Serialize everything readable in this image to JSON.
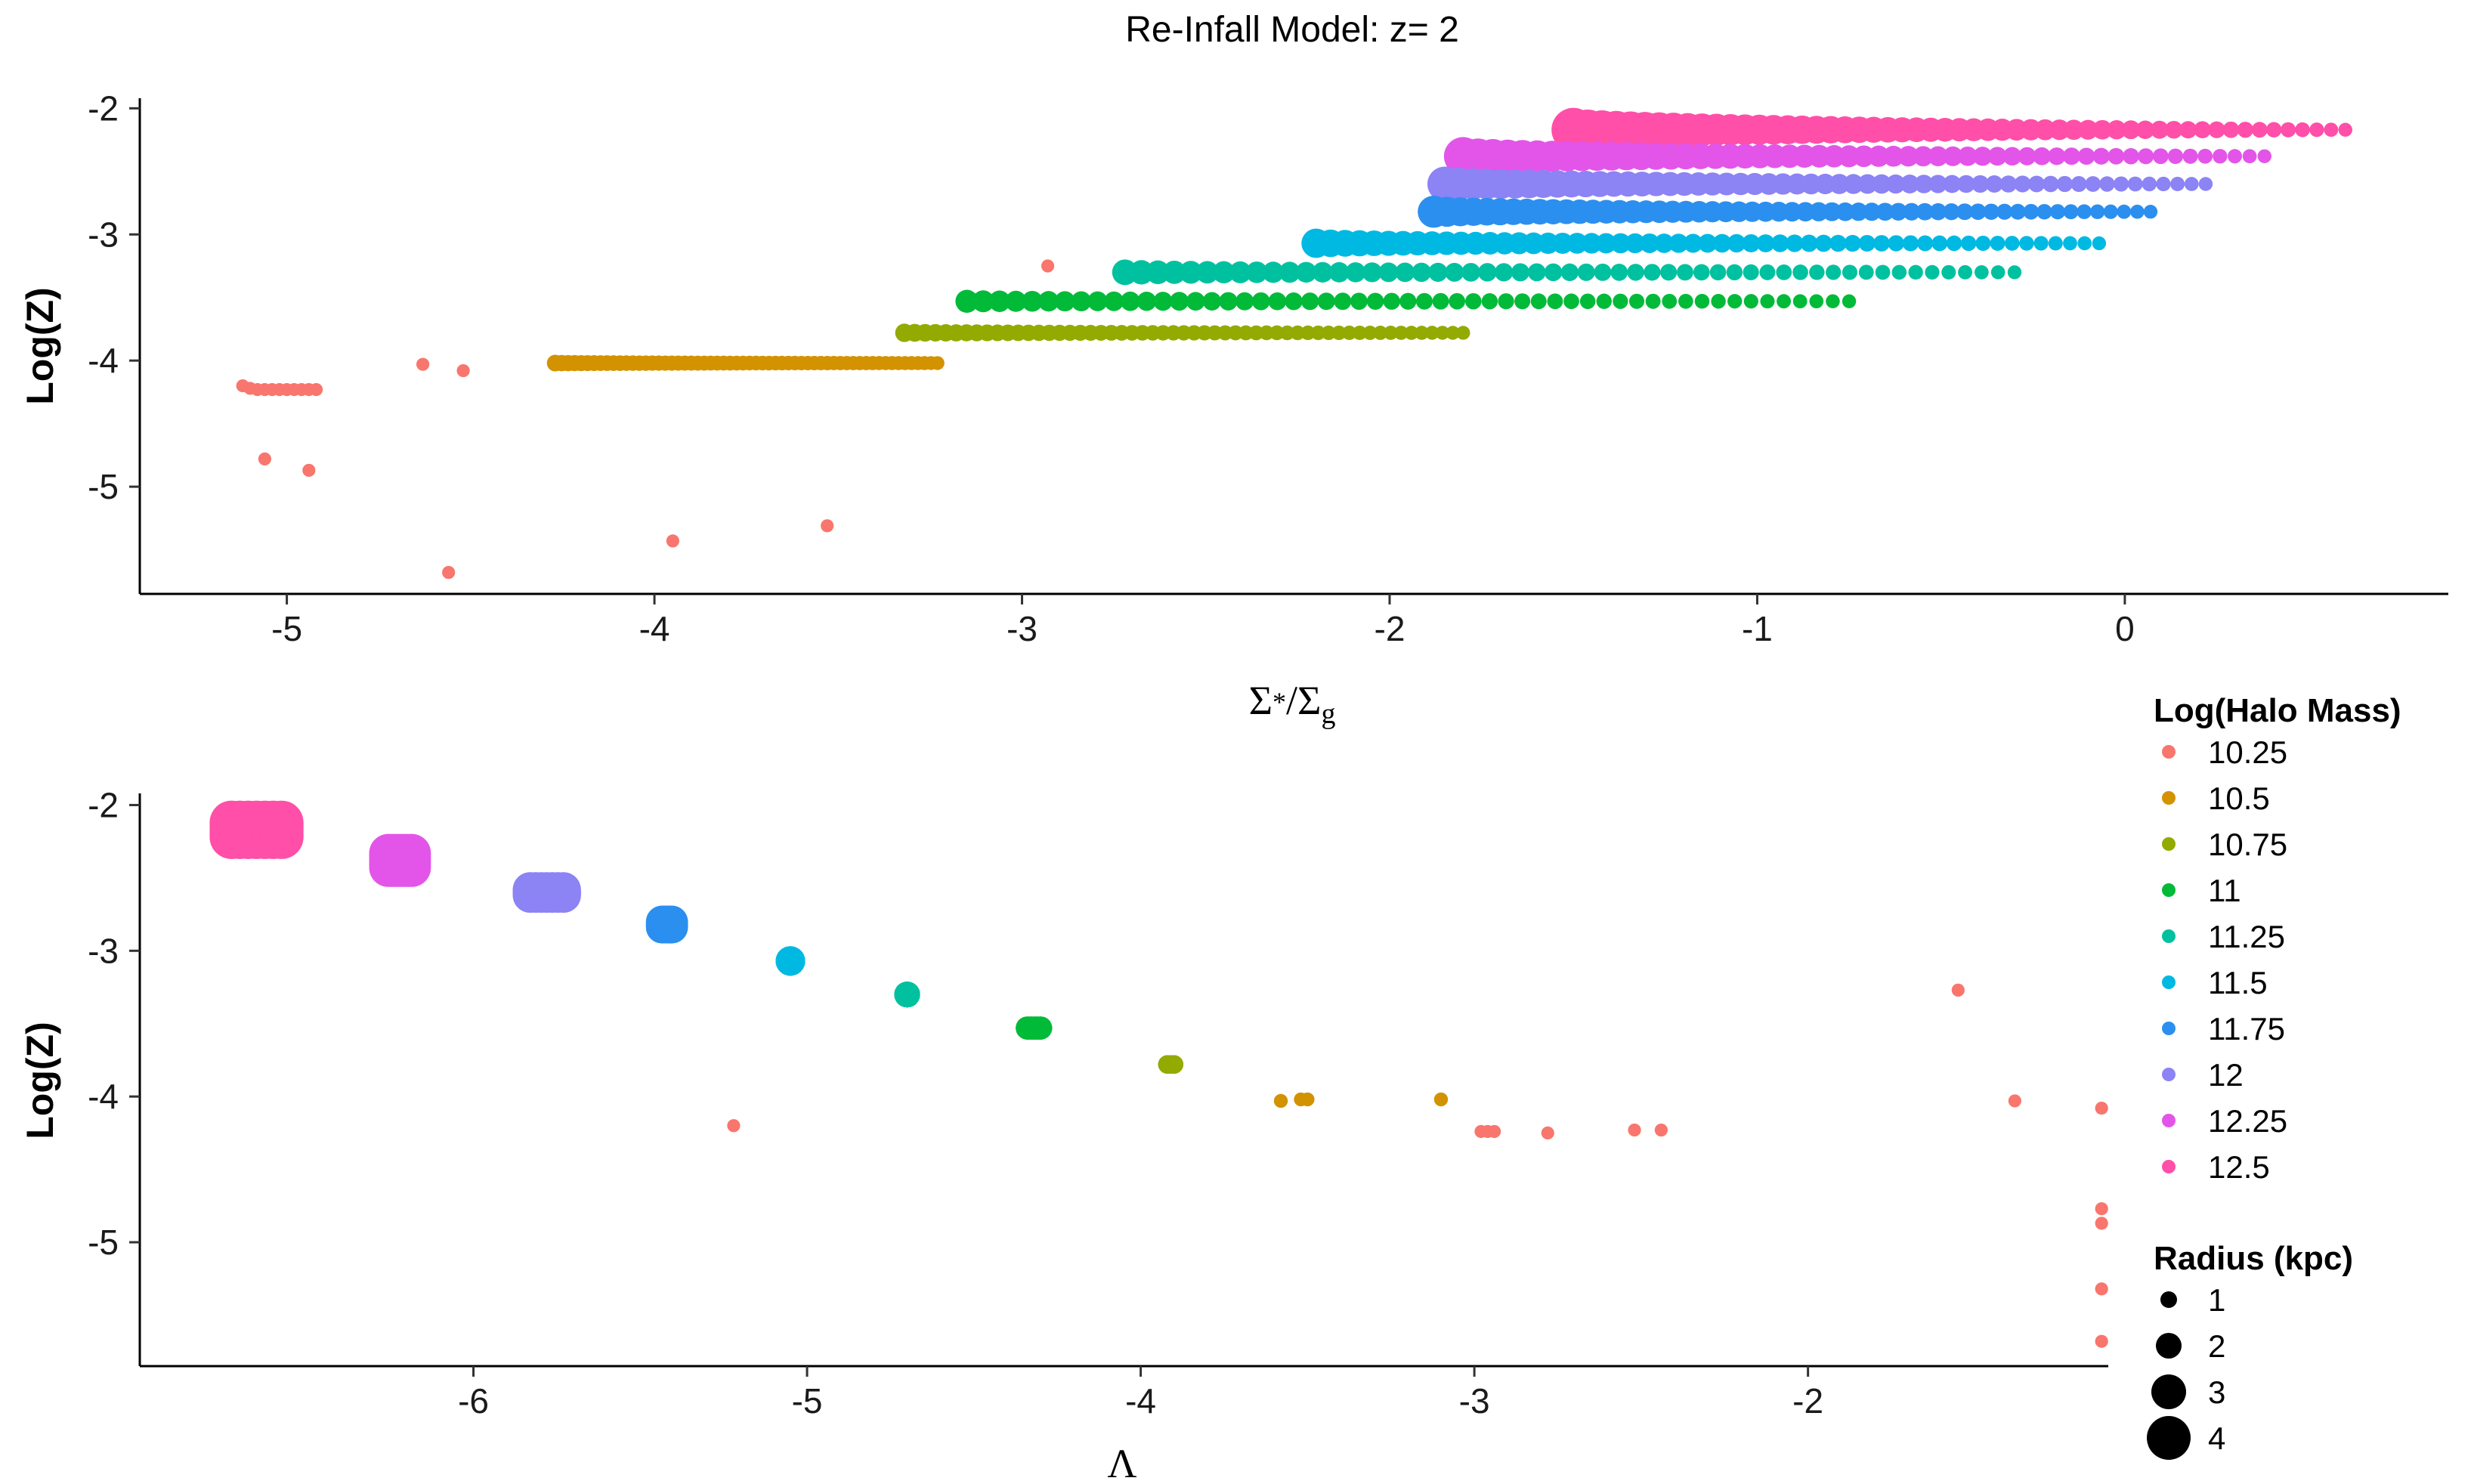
{
  "title": "Re-Infall Model: z= 2",
  "legend": {
    "color_title": "Log(Halo Mass)",
    "size_title": "Radius (kpc)",
    "mass_labels": [
      "10.25",
      "10.5",
      "10.75",
      "11",
      "11.25",
      "11.5",
      "11.75",
      "12",
      "12.25",
      "12.5"
    ],
    "radius_labels": [
      "1",
      "2",
      "3",
      "4"
    ],
    "radius_values": [
      1,
      2,
      3,
      4
    ]
  },
  "colors": {
    "10.25": "#F8766D",
    "10.5": "#D39200",
    "10.75": "#93AA00",
    "11": "#00BA38",
    "11.25": "#00C19F",
    "11.5": "#00B9E3",
    "11.75": "#2B8FF0",
    "12": "#8C83F5",
    "12.25": "#E355E8",
    "12.5": "#FF4FA8"
  },
  "chart_data": [
    {
      "type": "scatter",
      "title": "Re-Infall Model: z= 2",
      "xlabel": "Σ*/Σg",
      "ylabel": "Log(Z)",
      "xlim": [
        -5.4,
        0.88
      ],
      "ylim": [
        -5.85,
        -1.92
      ],
      "xticks": [
        -5,
        -4,
        -3,
        -2,
        -1,
        0
      ],
      "xtick_labels": [
        "-5",
        "-4",
        "-3",
        "-2",
        "-1",
        "0"
      ],
      "yticks": [
        -2,
        -3,
        -4,
        -5
      ],
      "ytick_labels": [
        "-2",
        "-3",
        "-4",
        "-5"
      ],
      "grid": false,
      "legend_position": "right",
      "series": [
        {
          "name": "12.5",
          "x_start": -1.5,
          "x_end": 0.6,
          "y": -2.17,
          "n": 55,
          "size_start": 4.0,
          "size_end": 0.7
        },
        {
          "name": "12.25",
          "x_start": -1.8,
          "x_end": 0.38,
          "y": -2.38,
          "n": 55,
          "size_start": 3.4,
          "size_end": 0.7
        },
        {
          "name": "12",
          "x_start": -1.85,
          "x_end": 0.22,
          "y": -2.6,
          "n": 55,
          "size_start": 3.0,
          "size_end": 0.7
        },
        {
          "name": "11.75",
          "x_start": -1.88,
          "x_end": 0.07,
          "y": -2.82,
          "n": 55,
          "size_start": 2.7,
          "size_end": 0.7
        },
        {
          "name": "11.5",
          "x_start": -2.2,
          "x_end": -0.07,
          "y": -3.07,
          "n": 55,
          "size_start": 2.4,
          "size_end": 0.7
        },
        {
          "name": "11.25",
          "x_start": -2.72,
          "x_end": -0.3,
          "y": -3.3,
          "n": 55,
          "size_start": 2.0,
          "size_end": 0.7
        },
        {
          "name": "11",
          "x_start": -3.15,
          "x_end": -0.75,
          "y": -3.53,
          "n": 55,
          "size_start": 1.7,
          "size_end": 0.7
        },
        {
          "name": "10.75",
          "x_start": -3.32,
          "x_end": -1.8,
          "y": -3.78,
          "n": 55,
          "size_start": 1.2,
          "size_end": 0.7
        },
        {
          "name": "10.5",
          "x_start": -4.27,
          "x_end": -3.23,
          "y": -4.02,
          "n": 60,
          "size_start": 1.0,
          "size_end": 0.7
        }
      ],
      "scattered_points": [
        {
          "name": "10.25",
          "points": [
            [
              -5.12,
              -4.2
            ],
            [
              -5.1,
              -4.22
            ],
            [
              -5.08,
              -4.23
            ],
            [
              -5.06,
              -4.23
            ],
            [
              -5.04,
              -4.23
            ],
            [
              -5.02,
              -4.23
            ],
            [
              -5.0,
              -4.23
            ],
            [
              -4.98,
              -4.23
            ],
            [
              -4.96,
              -4.23
            ],
            [
              -4.94,
              -4.23
            ],
            [
              -4.92,
              -4.23
            ],
            [
              -5.06,
              -4.78
            ],
            [
              -4.94,
              -4.87
            ],
            [
              -4.63,
              -4.03
            ],
            [
              -4.52,
              -4.08
            ],
            [
              -4.56,
              -5.68
            ],
            [
              -3.95,
              -5.43
            ],
            [
              -3.53,
              -5.31
            ],
            [
              -2.93,
              -3.25
            ]
          ],
          "size": 0.6
        }
      ]
    },
    {
      "type": "scatter",
      "xlabel": "Λ",
      "ylabel": "Log(Z)",
      "xlim": [
        -7.0,
        -1.1
      ],
      "ylim": [
        -5.85,
        -1.92
      ],
      "xticks": [
        -6,
        -5,
        -4,
        -3,
        -2
      ],
      "xtick_labels": [
        "-6",
        "-5",
        "-4",
        "-3",
        "-2"
      ],
      "yticks": [
        -2,
        -3,
        -4,
        -5
      ],
      "ytick_labels": [
        "-2",
        "-3",
        "-4",
        "-5"
      ],
      "grid": false,
      "clusters": [
        {
          "name": "12.5",
          "x": -6.65,
          "y": -2.17,
          "width": 0.15,
          "height": 0.1,
          "size": 4.0
        },
        {
          "name": "12.25",
          "x": -6.22,
          "y": -2.38,
          "width": 0.07,
          "height": 0.1,
          "size": 3.4
        },
        {
          "name": "12",
          "x": -5.78,
          "y": -2.6,
          "width": 0.1,
          "height": 0.04,
          "size": 3.0
        },
        {
          "name": "11.75",
          "x": -5.42,
          "y": -2.82,
          "width": 0.03,
          "height": 0.04,
          "size": 2.7
        },
        {
          "name": "11.5",
          "x": -5.05,
          "y": -3.07,
          "width": 0.0,
          "height": 0.0,
          "size": 2.4
        },
        {
          "name": "11.25",
          "x": -4.7,
          "y": -3.3,
          "width": 0.0,
          "height": 0.0,
          "size": 2.0
        },
        {
          "name": "11",
          "x": -4.32,
          "y": -3.53,
          "width": 0.04,
          "height": 0.0,
          "size": 1.7
        },
        {
          "name": "10.75",
          "x": -3.91,
          "y": -3.78,
          "width": 0.02,
          "height": 0.0,
          "size": 1.2
        }
      ],
      "scattered_points": [
        {
          "name": "10.5",
          "points": [
            [
              -3.58,
              -4.03
            ],
            [
              -3.52,
              -4.02
            ],
            [
              -3.5,
              -4.02
            ],
            [
              -3.1,
              -4.02
            ]
          ],
          "size": 0.7
        },
        {
          "name": "10.25",
          "points": [
            [
              -5.22,
              -4.2
            ],
            [
              -2.98,
              -4.24
            ],
            [
              -2.96,
              -4.24
            ],
            [
              -2.94,
              -4.24
            ],
            [
              -2.78,
              -4.25
            ],
            [
              -2.52,
              -4.23
            ],
            [
              -2.44,
              -4.23
            ],
            [
              -1.55,
              -3.27
            ],
            [
              -1.38,
              -4.03
            ],
            [
              -1.12,
              -4.08
            ],
            [
              -1.12,
              -4.77
            ],
            [
              -1.12,
              -4.87
            ],
            [
              -1.12,
              -5.32
            ],
            [
              -1.12,
              -5.68
            ]
          ],
          "size": 0.6
        }
      ]
    }
  ]
}
